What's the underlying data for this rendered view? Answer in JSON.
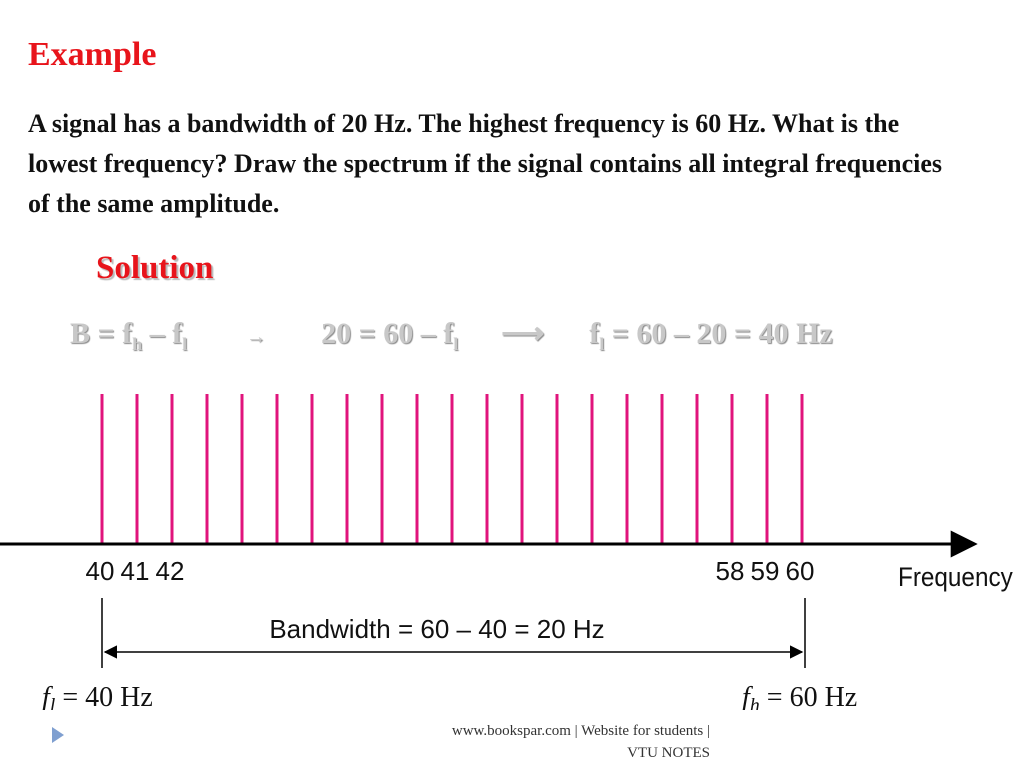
{
  "slide": {
    "heading": "Example",
    "problem": "A signal has a bandwidth of 20 Hz. The highest frequency is 60 Hz. What is the lowest frequency? Draw the spectrum if the signal contains all integral frequencies of the same amplitude.",
    "solution_label": "Solution",
    "equation": {
      "eq1_left": "B = f",
      "eq1_sub_h": "h",
      "eq1_mid": " – f",
      "eq1_sub_l": "l",
      "arrow1": "→",
      "eq2_left": "20 = 60 – f",
      "eq2_sub_l": "l",
      "arrow2": "⟶",
      "eq3_left": "f",
      "eq3_sub_l": "l",
      "eq3_right": " = 60 – 20 = 40 Hz"
    },
    "footer_line1": "www.bookspar.com | Website for students |",
    "footer_line2": "VTU NOTES",
    "colors": {
      "heading": "#e8141b",
      "spectral_line": "#e0147c",
      "equation": "#c8c8c8"
    }
  },
  "chart_data": {
    "type": "bar",
    "x": [
      40,
      41,
      42,
      43,
      44,
      45,
      46,
      47,
      48,
      49,
      50,
      51,
      52,
      53,
      54,
      55,
      56,
      57,
      58,
      59,
      60
    ],
    "amplitude": 1,
    "tick_labels": [
      {
        "x": 40,
        "label": "40"
      },
      {
        "x": 41,
        "label": "41"
      },
      {
        "x": 42,
        "label": "42"
      },
      {
        "x": 58,
        "label": "58"
      },
      {
        "x": 59,
        "label": "59"
      },
      {
        "x": 60,
        "label": "60"
      }
    ],
    "xlabel": "Frequency",
    "bandwidth_label": "Bandwidth = 60 – 40 = 20 Hz",
    "low": {
      "x": 40,
      "symbol": "f",
      "sub": "l",
      "value": " = 40 Hz"
    },
    "high": {
      "x": 60,
      "symbol": "f",
      "sub": "h",
      "value": " = 60 Hz"
    }
  }
}
